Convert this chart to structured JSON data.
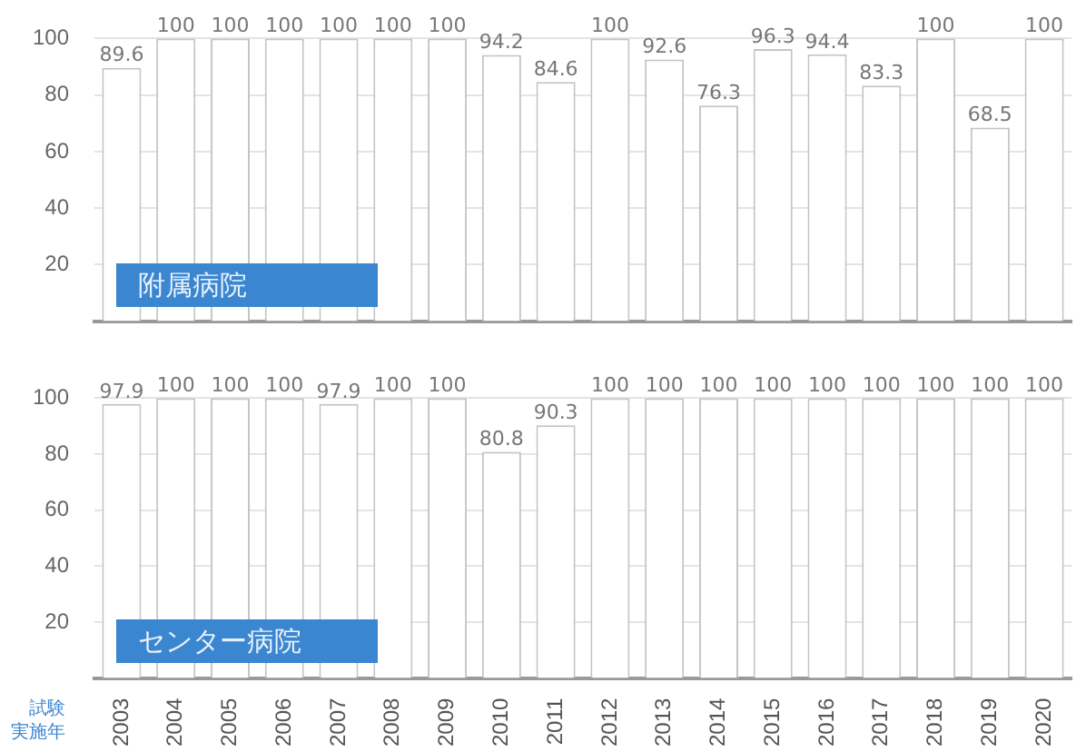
{
  "chart_data": [
    {
      "type": "bar",
      "title": "附属病院",
      "categories": [
        "2003",
        "2004",
        "2005",
        "2006",
        "2007",
        "2008",
        "2009",
        "2010",
        "2011",
        "2012",
        "2013",
        "2014",
        "2015",
        "2016",
        "2017",
        "2018",
        "2019",
        "2020"
      ],
      "values": [
        89.6,
        100,
        100,
        100,
        100,
        100,
        100,
        94.2,
        84.6,
        100,
        92.6,
        76.3,
        96.3,
        94.4,
        83.3,
        100,
        68.5,
        100
      ],
      "color": "#ffffff",
      "ylim": [
        0,
        100
      ],
      "yticks": [
        20,
        40,
        60,
        80,
        100
      ],
      "grid": "y",
      "data_labels": true,
      "tick_labels": "y"
    },
    {
      "type": "bar",
      "title": "センター病院",
      "xlabel": "試験実施年",
      "categories": [
        "2003",
        "2004",
        "2005",
        "2006",
        "2007",
        "2008",
        "2009",
        "2010",
        "2011",
        "2012",
        "2013",
        "2014",
        "2015",
        "2016",
        "2017",
        "2018",
        "2019",
        "2020"
      ],
      "values": [
        97.9,
        100,
        100,
        100,
        97.9,
        100,
        100,
        80.8,
        90.3,
        100,
        100,
        100,
        100,
        100,
        100,
        100,
        100,
        100
      ],
      "color": "#ffffff",
      "ylim": [
        0,
        100
      ],
      "yticks": [
        20,
        40,
        60,
        80,
        100
      ],
      "grid": "y",
      "data_labels": true
    }
  ]
}
